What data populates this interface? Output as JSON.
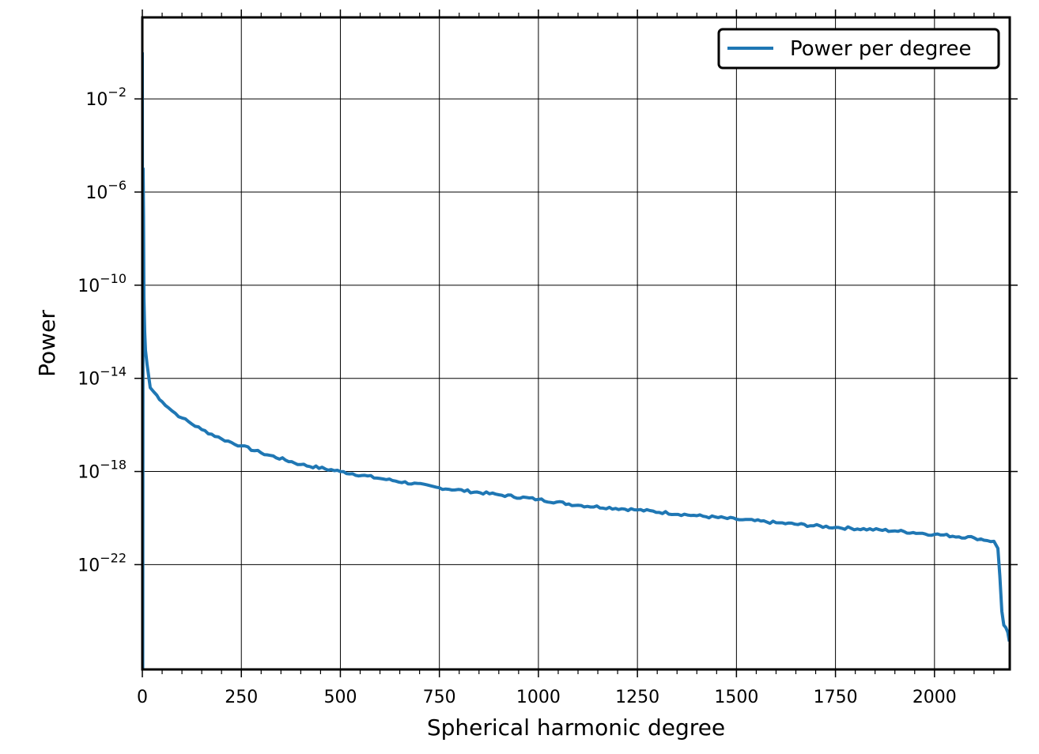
{
  "chart_data": {
    "type": "line",
    "title": "",
    "xlabel": "Spherical harmonic degree",
    "ylabel": "Power",
    "xscale": "linear",
    "yscale": "log",
    "xlim": [
      0,
      2190
    ],
    "ylim_exponent": [
      -26.5,
      1.5
    ],
    "grid": true,
    "legend": {
      "position": "upper right",
      "entries": [
        "Power per degree"
      ]
    },
    "x_ticks": [
      {
        "value": 0,
        "label": "0"
      },
      {
        "value": 250,
        "label": "250"
      },
      {
        "value": 500,
        "label": "500"
      },
      {
        "value": 750,
        "label": "750"
      },
      {
        "value": 1000,
        "label": "1000"
      },
      {
        "value": 1250,
        "label": "1250"
      },
      {
        "value": 1500,
        "label": "1500"
      },
      {
        "value": 1750,
        "label": "1750"
      },
      {
        "value": 2000,
        "label": "2000"
      }
    ],
    "y_ticks": [
      {
        "exponent": -2,
        "base": "10",
        "sup": "−2"
      },
      {
        "exponent": -6,
        "base": "10",
        "sup": "−6"
      },
      {
        "exponent": -10,
        "base": "10",
        "sup": "−10"
      },
      {
        "exponent": -14,
        "base": "10",
        "sup": "−14"
      },
      {
        "exponent": -18,
        "base": "10",
        "sup": "−18"
      },
      {
        "exponent": -22,
        "base": "10",
        "sup": "−22"
      }
    ],
    "series": [
      {
        "name": "Power per degree",
        "color": "#1f77b4",
        "x": [
          0,
          1,
          2,
          3,
          4,
          6,
          8,
          12,
          20,
          30,
          50,
          75,
          100,
          150,
          200,
          250,
          300,
          400,
          500,
          600,
          750,
          900,
          1000,
          1100,
          1250,
          1400,
          1500,
          1600,
          1750,
          1900,
          2000,
          2100,
          2150,
          2160,
          2165,
          2170,
          2175,
          2180,
          2185,
          2189
        ],
        "log10_y": [
          0.0,
          -26.5,
          -5.0,
          -7.0,
          -10.5,
          -12.0,
          -12.8,
          -13.4,
          -14.4,
          -14.6,
          -15.0,
          -15.4,
          -15.7,
          -16.2,
          -16.6,
          -16.9,
          -17.2,
          -17.7,
          -18.0,
          -18.3,
          -18.7,
          -19.0,
          -19.2,
          -19.45,
          -19.65,
          -19.9,
          -20.05,
          -20.2,
          -20.4,
          -20.55,
          -20.7,
          -20.85,
          -21.0,
          -21.3,
          -22.5,
          -24.0,
          -24.6,
          -24.7,
          -24.9,
          -25.3
        ]
      }
    ]
  }
}
